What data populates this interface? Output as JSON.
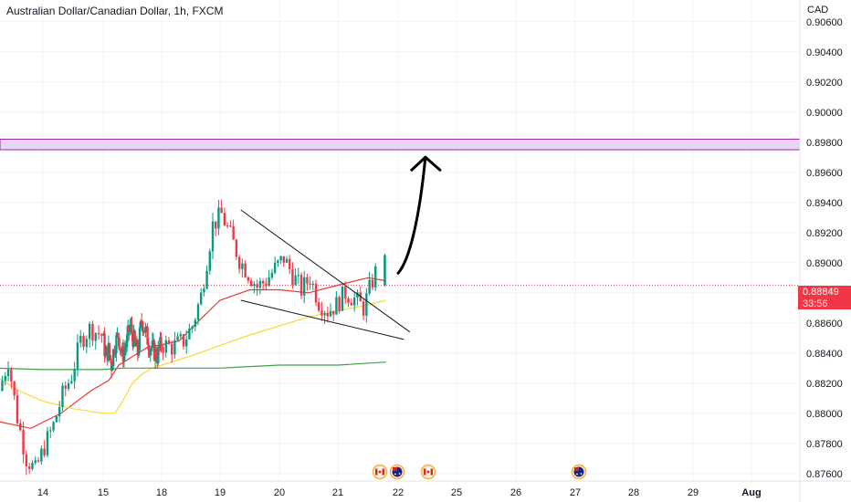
{
  "header": {
    "title": "Australian Dollar/Canadian Dollar, 1h, FXCM",
    "currency": "CAD"
  },
  "price_label": {
    "price": "0.88849",
    "countdown": "33:56"
  },
  "colors": {
    "bull": "#089981",
    "bear": "#f23645",
    "ma_fast": "#e53935",
    "ma_mid": "#fdd835",
    "ma_slow": "#43a047",
    "zone": "#e9d5f5",
    "zone_border": "#9c27b0",
    "price_tag": "#f23645"
  },
  "events": [
    {
      "label": "21",
      "icon": "canada-flag-icon"
    },
    {
      "label": "22",
      "icon": "australia-flag-icon"
    },
    {
      "label": "22",
      "icon": "canada-flag-icon"
    },
    {
      "label": "27",
      "icon": "australia-flag-icon"
    }
  ],
  "chart_data": {
    "type": "candlestick",
    "title": "Australian Dollar/Canadian Dollar, 1h, FXCM",
    "ylim": [
      0.8755,
      0.9072
    ],
    "y_ticks": [
      "0.90600",
      "0.90400",
      "0.90200",
      "0.90000",
      "0.89800",
      "0.89600",
      "0.89400",
      "0.89200",
      "0.89000",
      "0.88800",
      "0.88600",
      "0.88400",
      "0.88200",
      "0.88000",
      "0.87800",
      "0.87600"
    ],
    "x_ticks": [
      {
        "label": "14",
        "day": 14
      },
      {
        "label": "15",
        "day": 15
      },
      {
        "label": "18",
        "day": 18
      },
      {
        "label": "19",
        "day": 19
      },
      {
        "label": "20",
        "day": 20
      },
      {
        "label": "21",
        "day": 21
      },
      {
        "label": "22",
        "day": 22
      },
      {
        "label": "25",
        "day": 25
      },
      {
        "label": "26",
        "day": 26
      },
      {
        "label": "27",
        "day": 27
      },
      {
        "label": "28",
        "day": 28
      },
      {
        "label": "29",
        "day": 29
      },
      {
        "label": "Aug",
        "day": 30
      }
    ],
    "resistance_zone": [
      0.8975,
      0.8982
    ],
    "last_price": 0.88849,
    "candle_path": [
      [
        13.3,
        0.8815
      ],
      [
        13.45,
        0.8835
      ],
      [
        13.6,
        0.8797
      ],
      [
        13.75,
        0.877
      ],
      [
        13.9,
        0.8762
      ],
      [
        14.05,
        0.8778
      ],
      [
        14.2,
        0.8792
      ],
      [
        14.35,
        0.8812
      ],
      [
        14.5,
        0.8825
      ],
      [
        14.65,
        0.8848
      ],
      [
        14.8,
        0.8856
      ],
      [
        15.0,
        0.8852
      ],
      [
        15.15,
        0.8838
      ],
      [
        15.3,
        0.8842
      ],
      [
        15.45,
        0.8832
      ],
      [
        15.6,
        0.8845
      ],
      [
        15.8,
        0.8852
      ],
      [
        16.0,
        0.8838
      ],
      [
        16.2,
        0.8845
      ],
      [
        16.4,
        0.8858
      ],
      [
        16.6,
        0.8848
      ],
      [
        16.8,
        0.884
      ],
      [
        17.0,
        0.8862
      ],
      [
        17.2,
        0.8854
      ],
      [
        17.4,
        0.8845
      ],
      [
        17.6,
        0.8842
      ],
      [
        17.8,
        0.8838
      ],
      [
        18.0,
        0.8846
      ],
      [
        18.2,
        0.8844
      ],
      [
        18.4,
        0.8848
      ],
      [
        18.55,
        0.8858
      ],
      [
        18.7,
        0.8878
      ],
      [
        18.9,
        0.8925
      ],
      [
        19.05,
        0.8932
      ],
      [
        19.2,
        0.8918
      ],
      [
        19.35,
        0.8902
      ],
      [
        19.5,
        0.8893
      ],
      [
        19.65,
        0.8884
      ],
      [
        19.8,
        0.8888
      ],
      [
        19.95,
        0.8896
      ],
      [
        20.1,
        0.8903
      ],
      [
        20.25,
        0.8892
      ],
      [
        20.4,
        0.8882
      ],
      [
        20.55,
        0.889
      ],
      [
        20.7,
        0.8874
      ],
      [
        20.85,
        0.8868
      ],
      [
        21.0,
        0.8872
      ],
      [
        21.15,
        0.888
      ],
      [
        21.3,
        0.8876
      ],
      [
        21.45,
        0.887
      ],
      [
        21.6,
        0.8888
      ],
      [
        21.75,
        0.8904
      ]
    ],
    "series": [
      {
        "name": "",
        "color": "#e53935",
        "points": [
          [
            13.2,
            0.8795
          ],
          [
            13.8,
            0.879
          ],
          [
            14.3,
            0.88
          ],
          [
            14.8,
            0.8815
          ],
          [
            15.3,
            0.8822
          ],
          [
            15.8,
            0.8832
          ],
          [
            16.3,
            0.8836
          ],
          [
            16.8,
            0.884
          ],
          [
            17.3,
            0.8844
          ],
          [
            17.8,
            0.8845
          ],
          [
            18.3,
            0.8848
          ],
          [
            18.6,
            0.886
          ],
          [
            19.0,
            0.8875
          ],
          [
            19.5,
            0.8882
          ],
          [
            20.0,
            0.8882
          ],
          [
            20.5,
            0.888
          ],
          [
            21.0,
            0.8885
          ],
          [
            21.5,
            0.889
          ],
          [
            21.8,
            0.8888
          ]
        ]
      },
      {
        "name": "",
        "color": "#fdd835",
        "points": [
          [
            13.2,
            0.8825
          ],
          [
            13.6,
            0.8815
          ],
          [
            14.0,
            0.8808
          ],
          [
            14.5,
            0.8803
          ],
          [
            15.0,
            0.88
          ],
          [
            15.6,
            0.88
          ],
          [
            16.0,
            0.8808
          ],
          [
            16.5,
            0.882
          ],
          [
            17.0,
            0.8826
          ],
          [
            17.5,
            0.883
          ],
          [
            18.0,
            0.8832
          ],
          [
            18.5,
            0.8838
          ],
          [
            19.0,
            0.8845
          ],
          [
            19.5,
            0.8852
          ],
          [
            20.0,
            0.8858
          ],
          [
            20.5,
            0.8864
          ],
          [
            21.0,
            0.8868
          ],
          [
            21.5,
            0.8872
          ],
          [
            21.8,
            0.8875
          ]
        ]
      },
      {
        "name": "",
        "color": "#43a047",
        "points": [
          [
            13.2,
            0.883
          ],
          [
            14.0,
            0.8829
          ],
          [
            15.0,
            0.8829
          ],
          [
            16.0,
            0.883
          ],
          [
            17.0,
            0.883
          ],
          [
            18.0,
            0.883
          ],
          [
            19.0,
            0.883
          ],
          [
            20.0,
            0.8832
          ],
          [
            21.0,
            0.8832
          ],
          [
            21.8,
            0.8834
          ]
        ]
      }
    ],
    "annotations": {
      "upper_trendline": [
        [
          19.35,
          0.8935
        ],
        [
          22.6,
          0.8854
        ]
      ],
      "lower_trendline": [
        [
          19.35,
          0.8875
        ],
        [
          22.3,
          0.8849
        ]
      ],
      "forecast_arrow": [
        [
          22.0,
          0.8893
        ],
        [
          22.6,
          0.8902
        ],
        [
          23.1,
          0.893
        ],
        [
          23.4,
          0.897
        ]
      ]
    }
  }
}
